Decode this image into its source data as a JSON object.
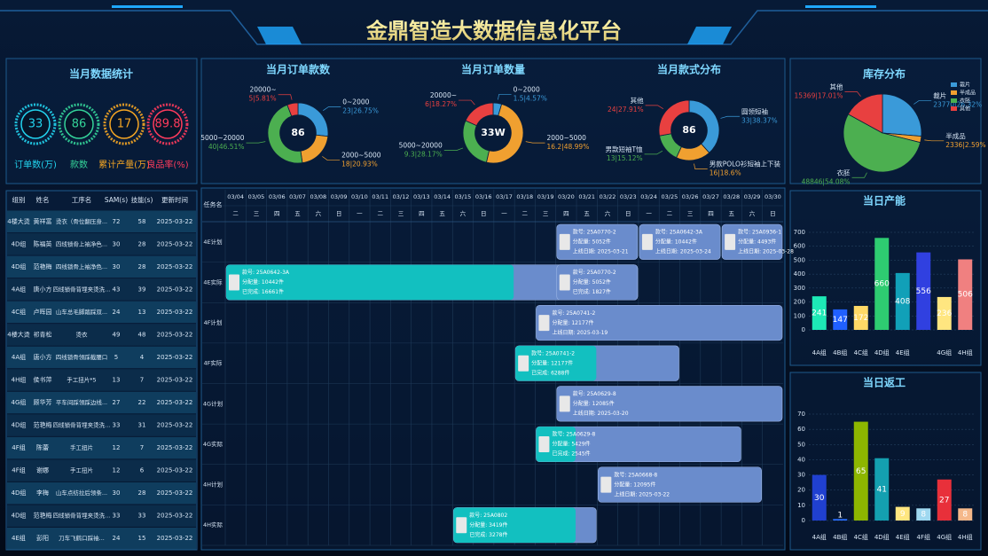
{
  "header": {
    "title": "金鼎智造大数据信息化平台"
  },
  "stats": {
    "title": "当月数据统计",
    "items": [
      {
        "label": "订单数(万)",
        "value": 33,
        "color": "#22d3ee"
      },
      {
        "label": "款数",
        "value": 86,
        "color": "#34d399"
      },
      {
        "label": "累计产量(万)",
        "value": 17,
        "color": "#f5a623"
      },
      {
        "label": "良品率(%)",
        "value": 89.8,
        "color": "#ff3b5c"
      }
    ]
  },
  "chart_data": [
    {
      "type": "donut",
      "title": "当月订单款数",
      "center_label": 86,
      "categories": [
        "0~2000",
        "2000~5000",
        "5000~20000",
        "20000~"
      ],
      "values": [
        26.75,
        20.93,
        46.51,
        5.81
      ],
      "value_labels": [
        "23|26.75%",
        "18|20.93%",
        "40|46.51%",
        "5|5.81%"
      ],
      "colors": [
        "#3a9ad9",
        "#f0a030",
        "#4caf50",
        "#e84040"
      ]
    },
    {
      "type": "donut",
      "title": "当月订单数量",
      "center_label": "33W",
      "categories": [
        "0~2000",
        "2000~5000",
        "5000~20000",
        "20000~"
      ],
      "values": [
        4.57,
        48.99,
        28.17,
        18.27
      ],
      "value_labels": [
        "1.5|4.57%",
        "16.2|48.99%",
        "9.3|28.17%",
        "6|18.27%"
      ],
      "colors": [
        "#3a9ad9",
        "#f0a030",
        "#4caf50",
        "#e84040"
      ]
    },
    {
      "type": "donut",
      "title": "当月款式分布",
      "center_label": 86,
      "categories": [
        "圆领短袖",
        "男款POLO衫短袖上下装",
        "男款短袖T恤",
        "其他"
      ],
      "values": [
        38.37,
        18.6,
        15.12,
        27.91
      ],
      "value_labels": [
        "33|38.37%",
        "16|18.6%",
        "13|15.12%",
        "24|27.91%"
      ],
      "colors": [
        "#3a9ad9",
        "#f0a030",
        "#4caf50",
        "#e84040"
      ]
    },
    {
      "type": "pie",
      "title": "库存分布",
      "legend": true,
      "categories": [
        "裁片",
        "半成品",
        "衣胚",
        "其他"
      ],
      "values": [
        26.32,
        2.59,
        54.08,
        17.01
      ],
      "value_labels": [
        "23770|26.32%",
        "2336|2.59%",
        "48846|54.08%",
        "15369|17.01%"
      ],
      "colors": [
        "#3a9ad9",
        "#f0a030",
        "#4caf50",
        "#e84040"
      ]
    },
    {
      "type": "bar",
      "title": "当日产能",
      "categories": [
        "4A组",
        "4B组",
        "4C组",
        "4D组",
        "4E组",
        null,
        "4G组",
        "4H组"
      ],
      "values": [
        241,
        147,
        172,
        660,
        408,
        556,
        236,
        506
      ],
      "colors": [
        "#1de9b6",
        "#2060ff",
        "#ffd966",
        "#2ecc71",
        "#11a0b8",
        "#3040e0",
        "#ffe680",
        "#f08080"
      ],
      "ylim": [
        0,
        700
      ],
      "yticks": [
        0,
        100,
        200,
        300,
        400,
        500,
        600,
        700
      ],
      "grid": true
    },
    {
      "type": "bar",
      "title": "当日返工",
      "categories": [
        "4A组",
        "4B组",
        "4C组",
        "4D组",
        "4E组",
        "4F组",
        "4G组",
        "4H组"
      ],
      "values": [
        30,
        1,
        65,
        41,
        9,
        8,
        27,
        8
      ],
      "colors": [
        "#2040d0",
        "#2a6fff",
        "#8db600",
        "#14a0b0",
        "#ffe680",
        "#9fd8f0",
        "#e8303a",
        "#f5b88a"
      ],
      "ylim": [
        0,
        70
      ],
      "yticks": [
        0,
        10,
        20,
        30,
        40,
        50,
        60,
        70
      ],
      "grid": true
    }
  ],
  "table": {
    "columns": [
      "组别",
      "姓名",
      "工序名",
      "SAM(s)",
      "技能(s)",
      "更新时间"
    ],
    "rows": [
      [
        "4楼大烫",
        "黄祥富",
        "烫衣（骨位翻压身...",
        72,
        58,
        "2025-03-22"
      ],
      [
        "4D组",
        "陈福英",
        "四线锁骨上袖净色...",
        30,
        28,
        "2025-03-22"
      ],
      [
        "4D组",
        "范艳梅",
        "四线锁骨上袖净色...",
        30,
        28,
        "2025-03-22"
      ],
      [
        "4A组",
        "唐小方",
        "四线锁骨背埋夹烫洗...",
        43,
        39,
        "2025-03-22"
      ],
      [
        "4C组",
        "卢晖园",
        "山车总毛脚踏踩双...",
        24,
        13,
        "2025-03-22"
      ],
      [
        "4楼大烫",
        "祁青松",
        "烫衣",
        49,
        48,
        "2025-03-22"
      ],
      [
        "4A组",
        "唐小方",
        "四线锁骨领踩截腰口",
        5,
        4,
        "2025-03-22"
      ],
      [
        "4H组",
        "侯书萍",
        "手工扭片*5",
        13,
        7,
        "2025-03-22"
      ],
      [
        "4G组",
        "顾华芳",
        "平车间踩领踩边线...",
        27,
        22,
        "2025-03-22"
      ],
      [
        "4D组",
        "范艳梅",
        "四线锁骨背埋夹烫洗...",
        33,
        31,
        "2025-03-22"
      ],
      [
        "4F组",
        "陈蕾",
        "手工扭片",
        12,
        7,
        "2025-03-22"
      ],
      [
        "4F组",
        "谢娜",
        "手工扭片",
        12,
        6,
        "2025-03-22"
      ],
      [
        "4D组",
        "李梅",
        "山车点纺拉后领条...",
        30,
        28,
        "2025-03-22"
      ],
      [
        "4D组",
        "范艳梅",
        "四线锁骨背埋夹烫洗...",
        33,
        33,
        "2025-03-22"
      ],
      [
        "4E组",
        "彭阳",
        "刀车飞鹤口踩袖...",
        24,
        15,
        "2025-03-22"
      ]
    ]
  },
  "gantt": {
    "corner": "任务名",
    "dates": [
      "03/04",
      "03/05",
      "03/06",
      "03/07",
      "03/08",
      "03/09",
      "03/10",
      "03/11",
      "03/12",
      "03/13",
      "03/14",
      "03/15",
      "03/16",
      "03/17",
      "03/18",
      "03/19",
      "03/20",
      "03/21",
      "03/22",
      "03/23",
      "03/24",
      "03/25",
      "03/26",
      "03/27",
      "03/28",
      "03/29",
      "03/30"
    ],
    "weekdays": [
      "二",
      "三",
      "四",
      "五",
      "六",
      "日",
      "一",
      "二",
      "三",
      "四",
      "五",
      "六",
      "日",
      "一",
      "二",
      "三",
      "四",
      "五",
      "六",
      "日",
      "一",
      "二",
      "三",
      "四",
      "五",
      "六",
      "日"
    ],
    "rows": [
      {
        "name": "4E计划",
        "tasks": [
          {
            "start": "03/20",
            "end": "03/23",
            "lines": [
              "款号: 25A0770-2",
              "分配量: 5052件",
              "上线日期: 2025-03-21"
            ]
          },
          {
            "start": "03/24",
            "end": "03/27",
            "lines": [
              "款号: 25A0642-3A",
              "分配量: 10442件",
              "上线日期: 2025-03-24"
            ]
          },
          {
            "start": "03/28",
            "end": "03/30",
            "lines": [
              "款号: 25A0936-1",
              "分配量: 4493件",
              "上线日期: 2025-03-28"
            ]
          }
        ]
      },
      {
        "name": "4E实际",
        "tasks": [
          {
            "start": "03/04",
            "end": "03/23",
            "progress_end": "03/17",
            "lines": [
              "款号: 25A0642-3A",
              "分配量: 10442件",
              "已完成: 16661件"
            ]
          },
          {
            "start": "03/20",
            "end": "03/23",
            "lines": [
              "款号: 25A0770-2",
              "分配量: 5052件",
              "已完成: 1827件"
            ]
          }
        ]
      },
      {
        "name": "4F计划",
        "tasks": [
          {
            "start": "03/19",
            "end": "03/30",
            "lines": [
              "款号: 25A0741-2",
              "分配量: 12177件",
              "上线日期: 2025-03-19"
            ]
          }
        ]
      },
      {
        "name": "4F实际",
        "tasks": [
          {
            "start": "03/18",
            "end": "03/25",
            "progress_end": "03/21",
            "lines": [
              "款号: 25A0741-2",
              "分配量: 12177件",
              "已完成: 6288件"
            ]
          }
        ]
      },
      {
        "name": "4G计划",
        "tasks": [
          {
            "start": "03/20",
            "end": "03/30",
            "lines": [
              "款号: 25A0629-8",
              "分配量: 12085件",
              "上线日期: 2025-03-20"
            ]
          }
        ]
      },
      {
        "name": "4G实际",
        "tasks": [
          {
            "start": "03/19",
            "end": "03/28",
            "progress_end": "03/20",
            "lines": [
              "款号: 25A0629-8",
              "分配量: 5429件",
              "已完成: 2545件"
            ]
          }
        ]
      },
      {
        "name": "4H计划",
        "tasks": [
          {
            "start": "03/22",
            "end": "03/29",
            "lines": [
              "款号: 25A0668-8",
              "分配量: 12095件",
              "上线日期: 2025-03-22"
            ]
          }
        ]
      },
      {
        "name": "4H实际",
        "tasks": [
          {
            "start": "03/15",
            "end": "03/21",
            "progress_end": "03/20",
            "lines": [
              "款号: 25A0802",
              "分配量: 3419件",
              "已完成: 3278件"
            ]
          }
        ]
      }
    ]
  }
}
